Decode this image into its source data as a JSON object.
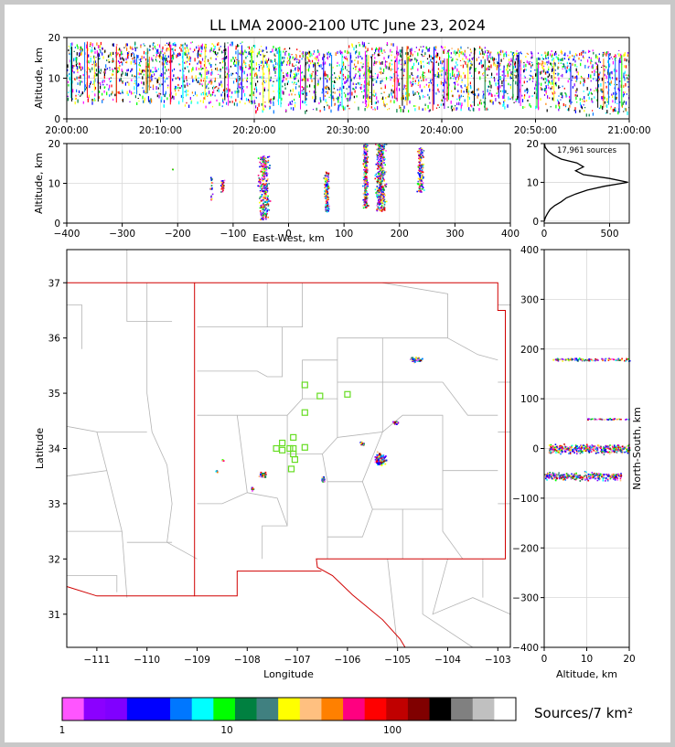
{
  "chart_data": [
    {
      "type": "scatter",
      "panel": "altitude-vs-time",
      "title": "LL LMA 2000-2100 UTC June 23, 2024",
      "ylabel": "Altitude, km",
      "ylim": [
        0,
        20
      ],
      "yticks": [
        "0",
        "10",
        "20"
      ],
      "xticks": [
        "20:00:00",
        "20:10:00",
        "20:20:00",
        "20:30:00",
        "20:40:00",
        "20:50:00",
        "21:00:00"
      ],
      "grid": true,
      "activity": [
        {
          "t": 0,
          "lo": 4,
          "hi": 19
        },
        {
          "t": 5,
          "lo": 4,
          "hi": 19
        },
        {
          "t": 10,
          "lo": 3,
          "hi": 19
        },
        {
          "t": 15,
          "lo": 3,
          "hi": 19
        },
        {
          "t": 20,
          "lo": 2,
          "hi": 18
        },
        {
          "t": 25,
          "lo": 2,
          "hi": 17
        },
        {
          "t": 30,
          "lo": 2,
          "hi": 19
        },
        {
          "t": 35,
          "lo": 2,
          "hi": 18
        },
        {
          "t": 40,
          "lo": 2,
          "hi": 18
        },
        {
          "t": 45,
          "lo": 3,
          "hi": 17
        },
        {
          "t": 50,
          "lo": 2,
          "hi": 17
        },
        {
          "t": 55,
          "lo": 1,
          "hi": 17
        },
        {
          "t": 60,
          "lo": 2,
          "hi": 16
        }
      ]
    },
    {
      "type": "scatter",
      "panel": "altitude-vs-east-west",
      "xlabel": "East-West, km",
      "ylabel": "Altitude, km",
      "xlim": [
        -400,
        400
      ],
      "ylim": [
        0,
        20
      ],
      "xticks": [
        "−400",
        "−300",
        "−200",
        "−100",
        "0",
        "100",
        "200",
        "300",
        "400"
      ],
      "yticks": [
        "0",
        "10",
        "20"
      ],
      "grid": true,
      "clusters": [
        {
          "x": -210,
          "w": 3,
          "lo": 13,
          "hi": 14,
          "n": 2
        },
        {
          "x": -140,
          "w": 6,
          "lo": 6,
          "hi": 12,
          "n": 20
        },
        {
          "x": -120,
          "w": 8,
          "lo": 8,
          "hi": 11,
          "n": 30
        },
        {
          "x": -45,
          "w": 25,
          "lo": 1,
          "hi": 17,
          "n": 320
        },
        {
          "x": 68,
          "w": 12,
          "lo": 3,
          "hi": 13,
          "n": 150
        },
        {
          "x": 138,
          "w": 12,
          "lo": 4,
          "hi": 20,
          "n": 250
        },
        {
          "x": 165,
          "w": 25,
          "lo": 3,
          "hi": 20,
          "n": 420
        },
        {
          "x": 237,
          "w": 14,
          "lo": 8,
          "hi": 19,
          "n": 180
        }
      ]
    },
    {
      "type": "line",
      "panel": "altitude-histogram",
      "annotation": "17,961 sources",
      "xlim": [
        0,
        650
      ],
      "ylim": [
        0,
        20
      ],
      "xticks": [
        "0",
        "500"
      ],
      "yticks": [
        "0",
        "10",
        "20"
      ],
      "profile": [
        {
          "alt": 0,
          "n": 0
        },
        {
          "alt": 1,
          "n": 10
        },
        {
          "alt": 2,
          "n": 25
        },
        {
          "alt": 3,
          "n": 45
        },
        {
          "alt": 4,
          "n": 80
        },
        {
          "alt": 5,
          "n": 130
        },
        {
          "alt": 6,
          "n": 170
        },
        {
          "alt": 7,
          "n": 240
        },
        {
          "alt": 8,
          "n": 330
        },
        {
          "alt": 9,
          "n": 460
        },
        {
          "alt": 10,
          "n": 640
        },
        {
          "alt": 11,
          "n": 500
        },
        {
          "alt": 12,
          "n": 300
        },
        {
          "alt": 13,
          "n": 240
        },
        {
          "alt": 14,
          "n": 300
        },
        {
          "alt": 15,
          "n": 250
        },
        {
          "alt": 16,
          "n": 130
        },
        {
          "alt": 17,
          "n": 70
        },
        {
          "alt": 18,
          "n": 30
        },
        {
          "alt": 19,
          "n": 8
        },
        {
          "alt": 20,
          "n": 2
        }
      ]
    },
    {
      "type": "scatter",
      "panel": "plan-view-map",
      "xlabel": "Longitude",
      "ylabel": "Latitude",
      "xlim": [
        -111.6,
        -102.75
      ],
      "ylim": [
        30.4,
        37.6
      ],
      "xticks": [
        "−111",
        "−110",
        "−109",
        "−108",
        "−107",
        "−106",
        "−105",
        "−104",
        "−103"
      ],
      "yticks": [
        "31",
        "32",
        "33",
        "34",
        "35",
        "36",
        "37"
      ],
      "stations": [
        [
          -106.85,
          35.15
        ],
        [
          -106.55,
          34.95
        ],
        [
          -106.0,
          34.98
        ],
        [
          -106.85,
          34.65
        ],
        [
          -107.08,
          34.2
        ],
        [
          -107.3,
          34.1
        ],
        [
          -107.42,
          34.0
        ],
        [
          -107.3,
          33.97
        ],
        [
          -107.15,
          34.0
        ],
        [
          -107.08,
          34.0
        ],
        [
          -106.85,
          34.02
        ],
        [
          -107.05,
          33.8
        ],
        [
          -107.08,
          33.9
        ],
        [
          -107.12,
          33.63
        ]
      ],
      "clusters": [
        {
          "lon": -104.65,
          "lat": 35.62,
          "rx": 0.22,
          "ry": 0.08,
          "n": 60
        },
        {
          "lon": -105.05,
          "lat": 34.48,
          "rx": 0.12,
          "ry": 0.06,
          "n": 25
        },
        {
          "lon": -105.72,
          "lat": 34.1,
          "rx": 0.1,
          "ry": 0.06,
          "n": 25
        },
        {
          "lon": -105.35,
          "lat": 33.82,
          "rx": 0.2,
          "ry": 0.22,
          "n": 110
        },
        {
          "lon": -107.7,
          "lat": 33.53,
          "rx": 0.18,
          "ry": 0.08,
          "n": 40
        },
        {
          "lon": -106.5,
          "lat": 33.45,
          "rx": 0.06,
          "ry": 0.1,
          "n": 30
        },
        {
          "lon": -108.5,
          "lat": 33.8,
          "rx": 0.03,
          "ry": 0.03,
          "n": 4
        },
        {
          "lon": -107.9,
          "lat": 33.27,
          "rx": 0.05,
          "ry": 0.08,
          "n": 10
        },
        {
          "lon": -108.62,
          "lat": 33.6,
          "rx": 0.04,
          "ry": 0.03,
          "n": 5
        }
      ]
    },
    {
      "type": "scatter",
      "panel": "north-south-vs-altitude",
      "xlabel": "Altitude, km",
      "ylabel": "North-South, km",
      "xlim": [
        0,
        20
      ],
      "ylim": [
        -400,
        400
      ],
      "xticks": [
        "0",
        "10",
        "20"
      ],
      "yticks": [
        "−400",
        "−300",
        "−200",
        "−100",
        "0",
        "100",
        "200",
        "300",
        "400"
      ],
      "clusters": [
        {
          "ns": 180,
          "w": 8,
          "lo": 2,
          "hi": 20,
          "n": 120
        },
        {
          "ns": 60,
          "w": 4,
          "lo": 10,
          "hi": 20,
          "n": 40
        },
        {
          "ns": 0,
          "w": 25,
          "lo": 1,
          "hi": 20,
          "n": 450
        },
        {
          "ns": -55,
          "w": 22,
          "lo": 0,
          "hi": 18,
          "n": 350
        }
      ]
    }
  ],
  "colorbar": {
    "label": "Sources/7 km²",
    "tick_labels": [
      "1",
      "10",
      "100"
    ],
    "colors": [
      "#ff55ff",
      "#8b00ff",
      "#8000ff",
      "#0000ff",
      "#0000ff",
      "#0077ff",
      "#00ffff",
      "#00ff00",
      "#008040",
      "#408080",
      "#ffff00",
      "#ffc080",
      "#ff8000",
      "#ff0080",
      "#ff0000",
      "#c00000",
      "#800000",
      "#000000",
      "#808080",
      "#c0c0c0",
      "#ffffff"
    ]
  }
}
